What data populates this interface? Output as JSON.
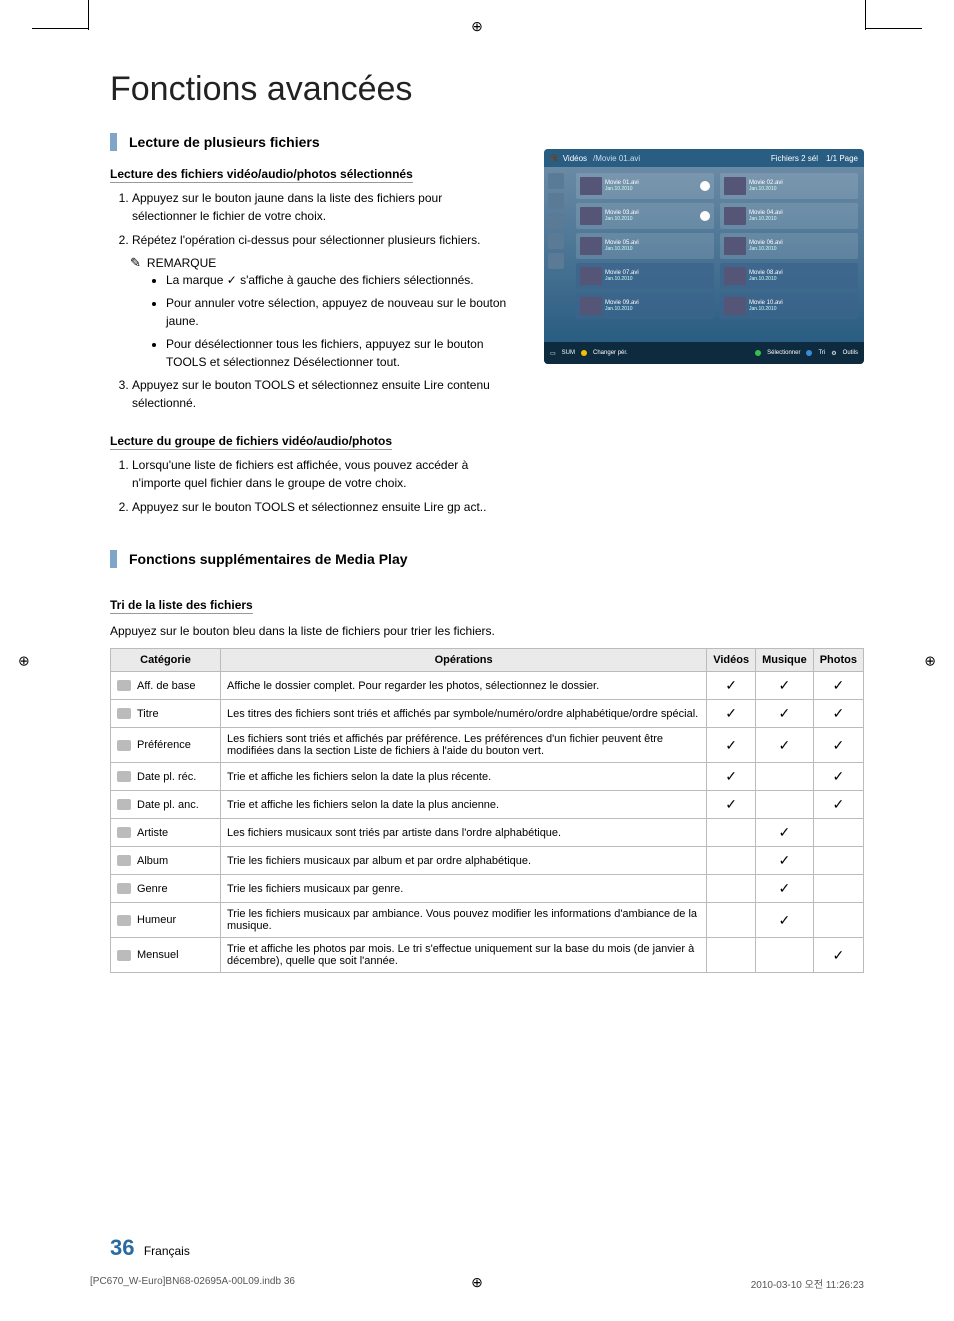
{
  "reg_marks": {
    "symbol": "⊕"
  },
  "crop": {},
  "page_title": "Fonctions avancées",
  "section1": {
    "title": "Lecture de plusieurs fichiers",
    "sub1": "Lecture des fichiers vidéo/audio/photos sélectionnés",
    "steps1": [
      "Appuyez sur le bouton jaune dans la liste des fichiers pour sélectionner le fichier de votre choix.",
      "Répétez l'opération ci-dessus pour sélectionner plusieurs fichiers."
    ],
    "remarque_label": "REMARQUE",
    "remarque_items": [
      "La marque ✓ s'affiche à gauche des fichiers sélectionnés.",
      "Pour annuler votre sélection, appuyez de nouveau sur le bouton jaune.",
      "Pour désélectionner tous les fichiers, appuyez sur le bouton TOOLS et sélectionnez Désélectionner tout."
    ],
    "step3": "Appuyez sur le bouton TOOLS et sélectionnez ensuite Lire contenu sélectionné.",
    "sub2": "Lecture du groupe de fichiers vidéo/audio/photos",
    "steps2": [
      "Lorsqu'une liste de fichiers est affichée, vous pouvez accéder à n'importe quel fichier dans le groupe de votre choix.",
      "Appuyez sur le bouton TOOLS et sélectionnez ensuite Lire gp act.."
    ]
  },
  "section2": {
    "title": "Fonctions supplémentaires de Media Play",
    "sub": "Tri de la liste des fichiers",
    "intro": "Appuyez sur le bouton bleu dans la liste de fichiers pour trier les fichiers.",
    "headers": {
      "cat": "Catégorie",
      "op": "Opérations",
      "vid": "Vidéos",
      "mus": "Musique",
      "pho": "Photos"
    },
    "rows": [
      {
        "label": "Aff. de base",
        "op": "Affiche le dossier complet. Pour regarder les photos, sélectionnez le dossier.",
        "v": "✓",
        "m": "✓",
        "p": "✓"
      },
      {
        "label": "Titre",
        "op": "Les titres des fichiers sont triés et affichés par symbole/numéro/ordre alphabétique/ordre spécial.",
        "v": "✓",
        "m": "✓",
        "p": "✓"
      },
      {
        "label": "Préférence",
        "op": "Les fichiers sont triés et affichés par préférence. Les préférences d'un fichier peuvent être modifiées dans la section Liste de fichiers à l'aide du bouton vert.",
        "v": "✓",
        "m": "✓",
        "p": "✓"
      },
      {
        "label": "Date pl. réc.",
        "op": "Trie et affiche les fichiers selon la date la plus récente.",
        "v": "✓",
        "m": "",
        "p": "✓"
      },
      {
        "label": "Date pl. anc.",
        "op": "Trie et affiche les fichiers selon la date la plus ancienne.",
        "v": "✓",
        "m": "",
        "p": "✓"
      },
      {
        "label": "Artiste",
        "op": "Les fichiers musicaux sont triés par artiste dans l'ordre alphabétique.",
        "v": "",
        "m": "✓",
        "p": ""
      },
      {
        "label": "Album",
        "op": "Trie les fichiers musicaux par album et par ordre alphabétique.",
        "v": "",
        "m": "✓",
        "p": ""
      },
      {
        "label": "Genre",
        "op": "Trie les fichiers musicaux par genre.",
        "v": "",
        "m": "✓",
        "p": ""
      },
      {
        "label": "Humeur",
        "op": "Trie les fichiers musicaux par ambiance. Vous pouvez modifier les informations d'ambiance de la musique.",
        "v": "",
        "m": "✓",
        "p": ""
      },
      {
        "label": "Mensuel",
        "op": "Trie et affiche les photos par mois. Le tri s'effectue uniquement sur la base du mois (de janvier à décembre), quelle que soit l'année.",
        "v": "",
        "m": "",
        "p": "✓"
      }
    ]
  },
  "screenshot": {
    "tab": "Vidéos",
    "path": "/Movie 01.avi",
    "info": "Fichiers 2 sél",
    "pages": "1/1 Page",
    "rows": [
      {
        "n": "Movie 01.avi",
        "d": "Jan.10.2010",
        "c": true
      },
      {
        "n": "Movie 02.avi",
        "d": "Jan.10.2010",
        "c": false
      },
      {
        "n": "Movie 03.avi",
        "d": "Jan.10.2010",
        "c": true
      },
      {
        "n": "Movie 04.avi",
        "d": "Jan.10.2010",
        "c": false
      },
      {
        "n": "Movie 05.avi",
        "d": "Jan.10.2010",
        "c": false
      },
      {
        "n": "Movie 06.avi",
        "d": "Jan.10.2010",
        "c": false
      },
      {
        "n": "Movie 07.avi",
        "d": "Jan.10.2010",
        "c": false,
        "sel": true
      },
      {
        "n": "Movie 08.avi",
        "d": "Jan.10.2010",
        "c": false,
        "sel": true
      },
      {
        "n": "Movie 09.avi",
        "d": "Jan.10.2010",
        "c": false,
        "sel": true
      },
      {
        "n": "Movie 10.avi",
        "d": "Jan.10.2010",
        "c": false,
        "sel": true
      }
    ],
    "footer": {
      "sum": "SUM",
      "yellow": "Changer pér.",
      "green": "Sélectionner",
      "blue": "Tri",
      "tools": "Outils"
    }
  },
  "page_number": "36",
  "page_lang": "Français",
  "footer_left": "[PC670_W-Euro]BN68-02695A-00L09.indb   36",
  "footer_right": "2010-03-10   오전 11:26:23"
}
